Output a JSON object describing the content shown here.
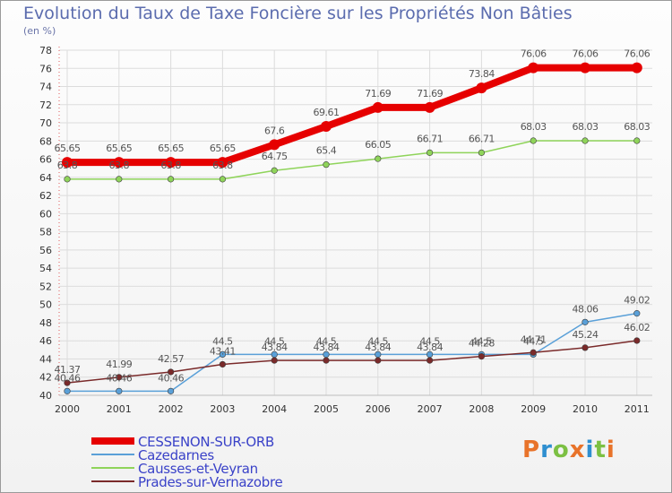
{
  "header": {
    "title": "Evolution du Taux de Taxe Foncière sur les Propriétés Non Bâties",
    "unit": "(en %)"
  },
  "logo": {
    "letters": [
      "P",
      "r",
      "o",
      "x",
      "i",
      "t",
      "i"
    ],
    "colors": [
      "#e8732a",
      "#2f8fd0",
      "#7cc043",
      "#e8732a",
      "#2f8fd0",
      "#7cc043",
      "#e8732a"
    ]
  },
  "colors": {
    "grid": "#dcdcdc",
    "axis_text": "#333333",
    "label_text": "#555555"
  },
  "chart_data": {
    "type": "line",
    "title": "Evolution du Taux de Taxe Foncière sur les Propriétés Non Bâties",
    "ylabel": "(en %)",
    "xlabel": "",
    "ylim": [
      40,
      78
    ],
    "ytick_step": 2,
    "grid": true,
    "legend_position": "bottom-left",
    "categories": [
      "2000",
      "2001",
      "2002",
      "2003",
      "2004",
      "2005",
      "2006",
      "2007",
      "2008",
      "2009",
      "2010",
      "2011"
    ],
    "series": [
      {
        "name": "CESSENON-SUR-ORB",
        "color": "#e60000",
        "width": 8,
        "values": [
          65.65,
          65.65,
          65.65,
          65.65,
          67.6,
          69.61,
          71.69,
          71.69,
          73.84,
          76.06,
          76.06,
          76.06
        ],
        "labels": [
          "65.65",
          "65.65",
          "65.65",
          "65.65",
          "67.6",
          "69.61",
          "71.69",
          "71.69",
          "73.84",
          "76.06",
          "76.06",
          "76.06"
        ]
      },
      {
        "name": "Cazedarnes",
        "color": "#5aa0d8",
        "width": 1.5,
        "values": [
          40.46,
          40.46,
          40.46,
          44.5,
          44.5,
          44.5,
          44.5,
          44.5,
          44.5,
          44.5,
          48.06,
          49.02
        ],
        "labels": [
          "40.46",
          "40.46",
          "40.46",
          "44.5",
          "44.5",
          "44.5",
          "44.5",
          "44.5",
          "44.5",
          "44.5",
          "48.06",
          "49.02"
        ]
      },
      {
        "name": "Causses-et-Veyran",
        "color": "#8fd45a",
        "width": 1.5,
        "values": [
          63.8,
          63.8,
          63.8,
          63.8,
          64.75,
          65.4,
          66.05,
          66.71,
          66.71,
          68.03,
          68.03,
          68.03
        ],
        "labels": [
          "63.8",
          "63.8",
          "63.8",
          "63.8",
          "64.75",
          "65.4",
          "66.05",
          "66.71",
          "66.71",
          "68.03",
          "68.03",
          "68.03"
        ]
      },
      {
        "name": "Prades-sur-Vernazobre",
        "color": "#7a2a2a",
        "width": 1.5,
        "values": [
          41.37,
          41.99,
          42.57,
          43.41,
          43.84,
          43.84,
          43.84,
          43.84,
          44.28,
          44.71,
          45.24,
          46.02
        ],
        "labels": [
          "41.37",
          "41.99",
          "42.57",
          "43.41",
          "43.84",
          "43.84",
          "43.84",
          "43.84",
          "44.28",
          "44.71",
          "45.24",
          "46.02"
        ]
      }
    ]
  }
}
